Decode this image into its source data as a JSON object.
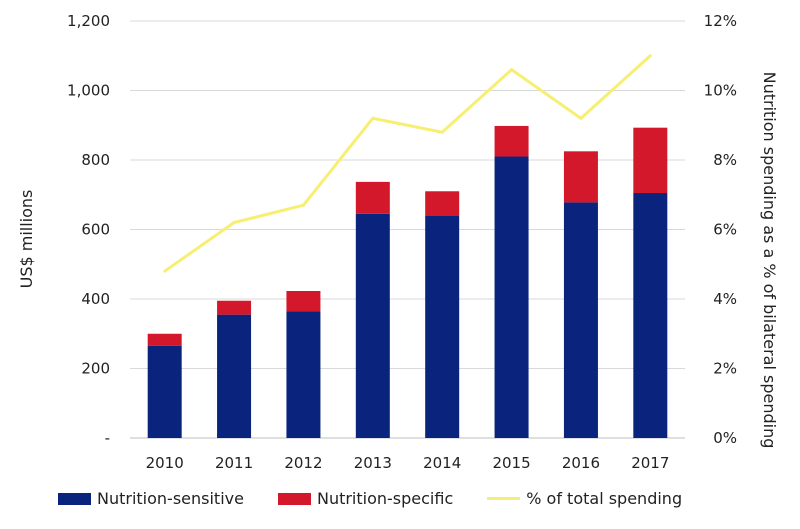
{
  "chart_data": {
    "type": "bar",
    "stacked": true,
    "categories": [
      "2010",
      "2011",
      "2012",
      "2013",
      "2014",
      "2015",
      "2016",
      "2017"
    ],
    "series": [
      {
        "name": "Nutrition-sensitive",
        "axis": "left",
        "color": "#0a237d",
        "values": [
          265,
          355,
          365,
          645,
          640,
          810,
          678,
          705
        ]
      },
      {
        "name": "Nutrition-specific",
        "axis": "left",
        "color": "#d3182c",
        "values": [
          35,
          40,
          58,
          92,
          70,
          88,
          147,
          188
        ]
      },
      {
        "name": "% of total spending",
        "type": "line",
        "axis": "right",
        "color": "#f7ef72",
        "values": [
          4.8,
          6.2,
          6.7,
          9.2,
          8.8,
          10.6,
          9.2,
          11.0
        ]
      }
    ],
    "ylabel": "US$ millions",
    "ylim": [
      0,
      1200
    ],
    "yticks": [
      "-",
      "200",
      "400",
      "600",
      "800",
      "1,000",
      "1,200"
    ],
    "y2label": "Nutrition spending as a % of bilateral spending",
    "y2lim": [
      0,
      12
    ],
    "y2ticks": [
      "0%",
      "2%",
      "4%",
      "6%",
      "8%",
      "10%",
      "12%"
    ],
    "grid": true,
    "legend_position": "bottom"
  }
}
